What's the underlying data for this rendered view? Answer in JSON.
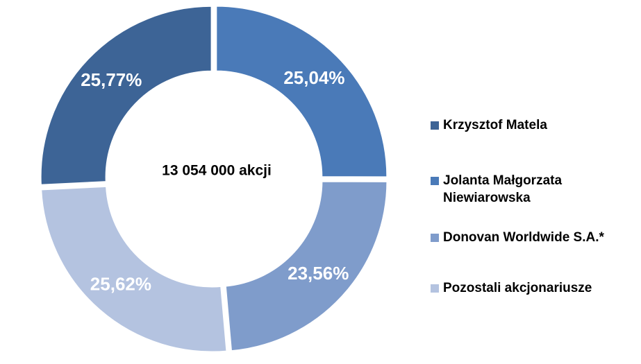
{
  "chart_data": {
    "type": "donut",
    "center_label": "13 054 000 akcji",
    "categories": [
      "Krzysztof Matela",
      "Jolanta Małgorzata Niewiarowska",
      "Donovan Worldwide S.A.*",
      "Pozostali akcjonariusze"
    ],
    "values": [
      25.77,
      25.04,
      23.56,
      25.62
    ],
    "value_labels": [
      "25,77%",
      "25,04%",
      "23,56%",
      "25,62%"
    ],
    "colors": [
      "#3d6496",
      "#4a7ab8",
      "#7f9ccb",
      "#b4c3e0"
    ],
    "legend": "right"
  }
}
